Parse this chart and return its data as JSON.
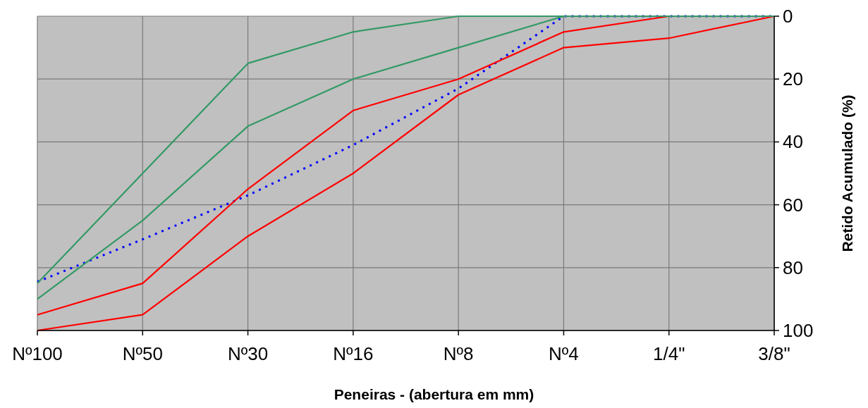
{
  "chart_data": {
    "type": "line",
    "xlabel": "Peneiras - (abertura em mm)",
    "ylabel": "Retido Acumulado (%)",
    "categories": [
      "Nº100",
      "Nº50",
      "Nº30",
      "Nº16",
      "Nº8",
      "Nº4",
      "1/4\"",
      "3/8\""
    ],
    "ylim": [
      100,
      0
    ],
    "yticks": [
      0,
      20,
      40,
      60,
      80,
      100
    ],
    "grid": true,
    "marker": "none",
    "series": [
      {
        "color": "#0000ff",
        "line_style": "dotted",
        "values": [
          84.5,
          71,
          57,
          41,
          23,
          0,
          0,
          0
        ]
      },
      {
        "color": "#ff0000",
        "line_style": "solid",
        "values": [
          95,
          85,
          55,
          30,
          20,
          5,
          0,
          0
        ]
      },
      {
        "color": "#ff0000",
        "line_style": "solid",
        "values": [
          100,
          95,
          70,
          50,
          25,
          10,
          7,
          0
        ]
      },
      {
        "color": "#339966",
        "line_style": "solid",
        "values": [
          85,
          50,
          15,
          5,
          0,
          0,
          0,
          0
        ]
      },
      {
        "color": "#339966",
        "line_style": "solid",
        "values": [
          90,
          65,
          35,
          20,
          10,
          0,
          0,
          0
        ]
      }
    ]
  }
}
